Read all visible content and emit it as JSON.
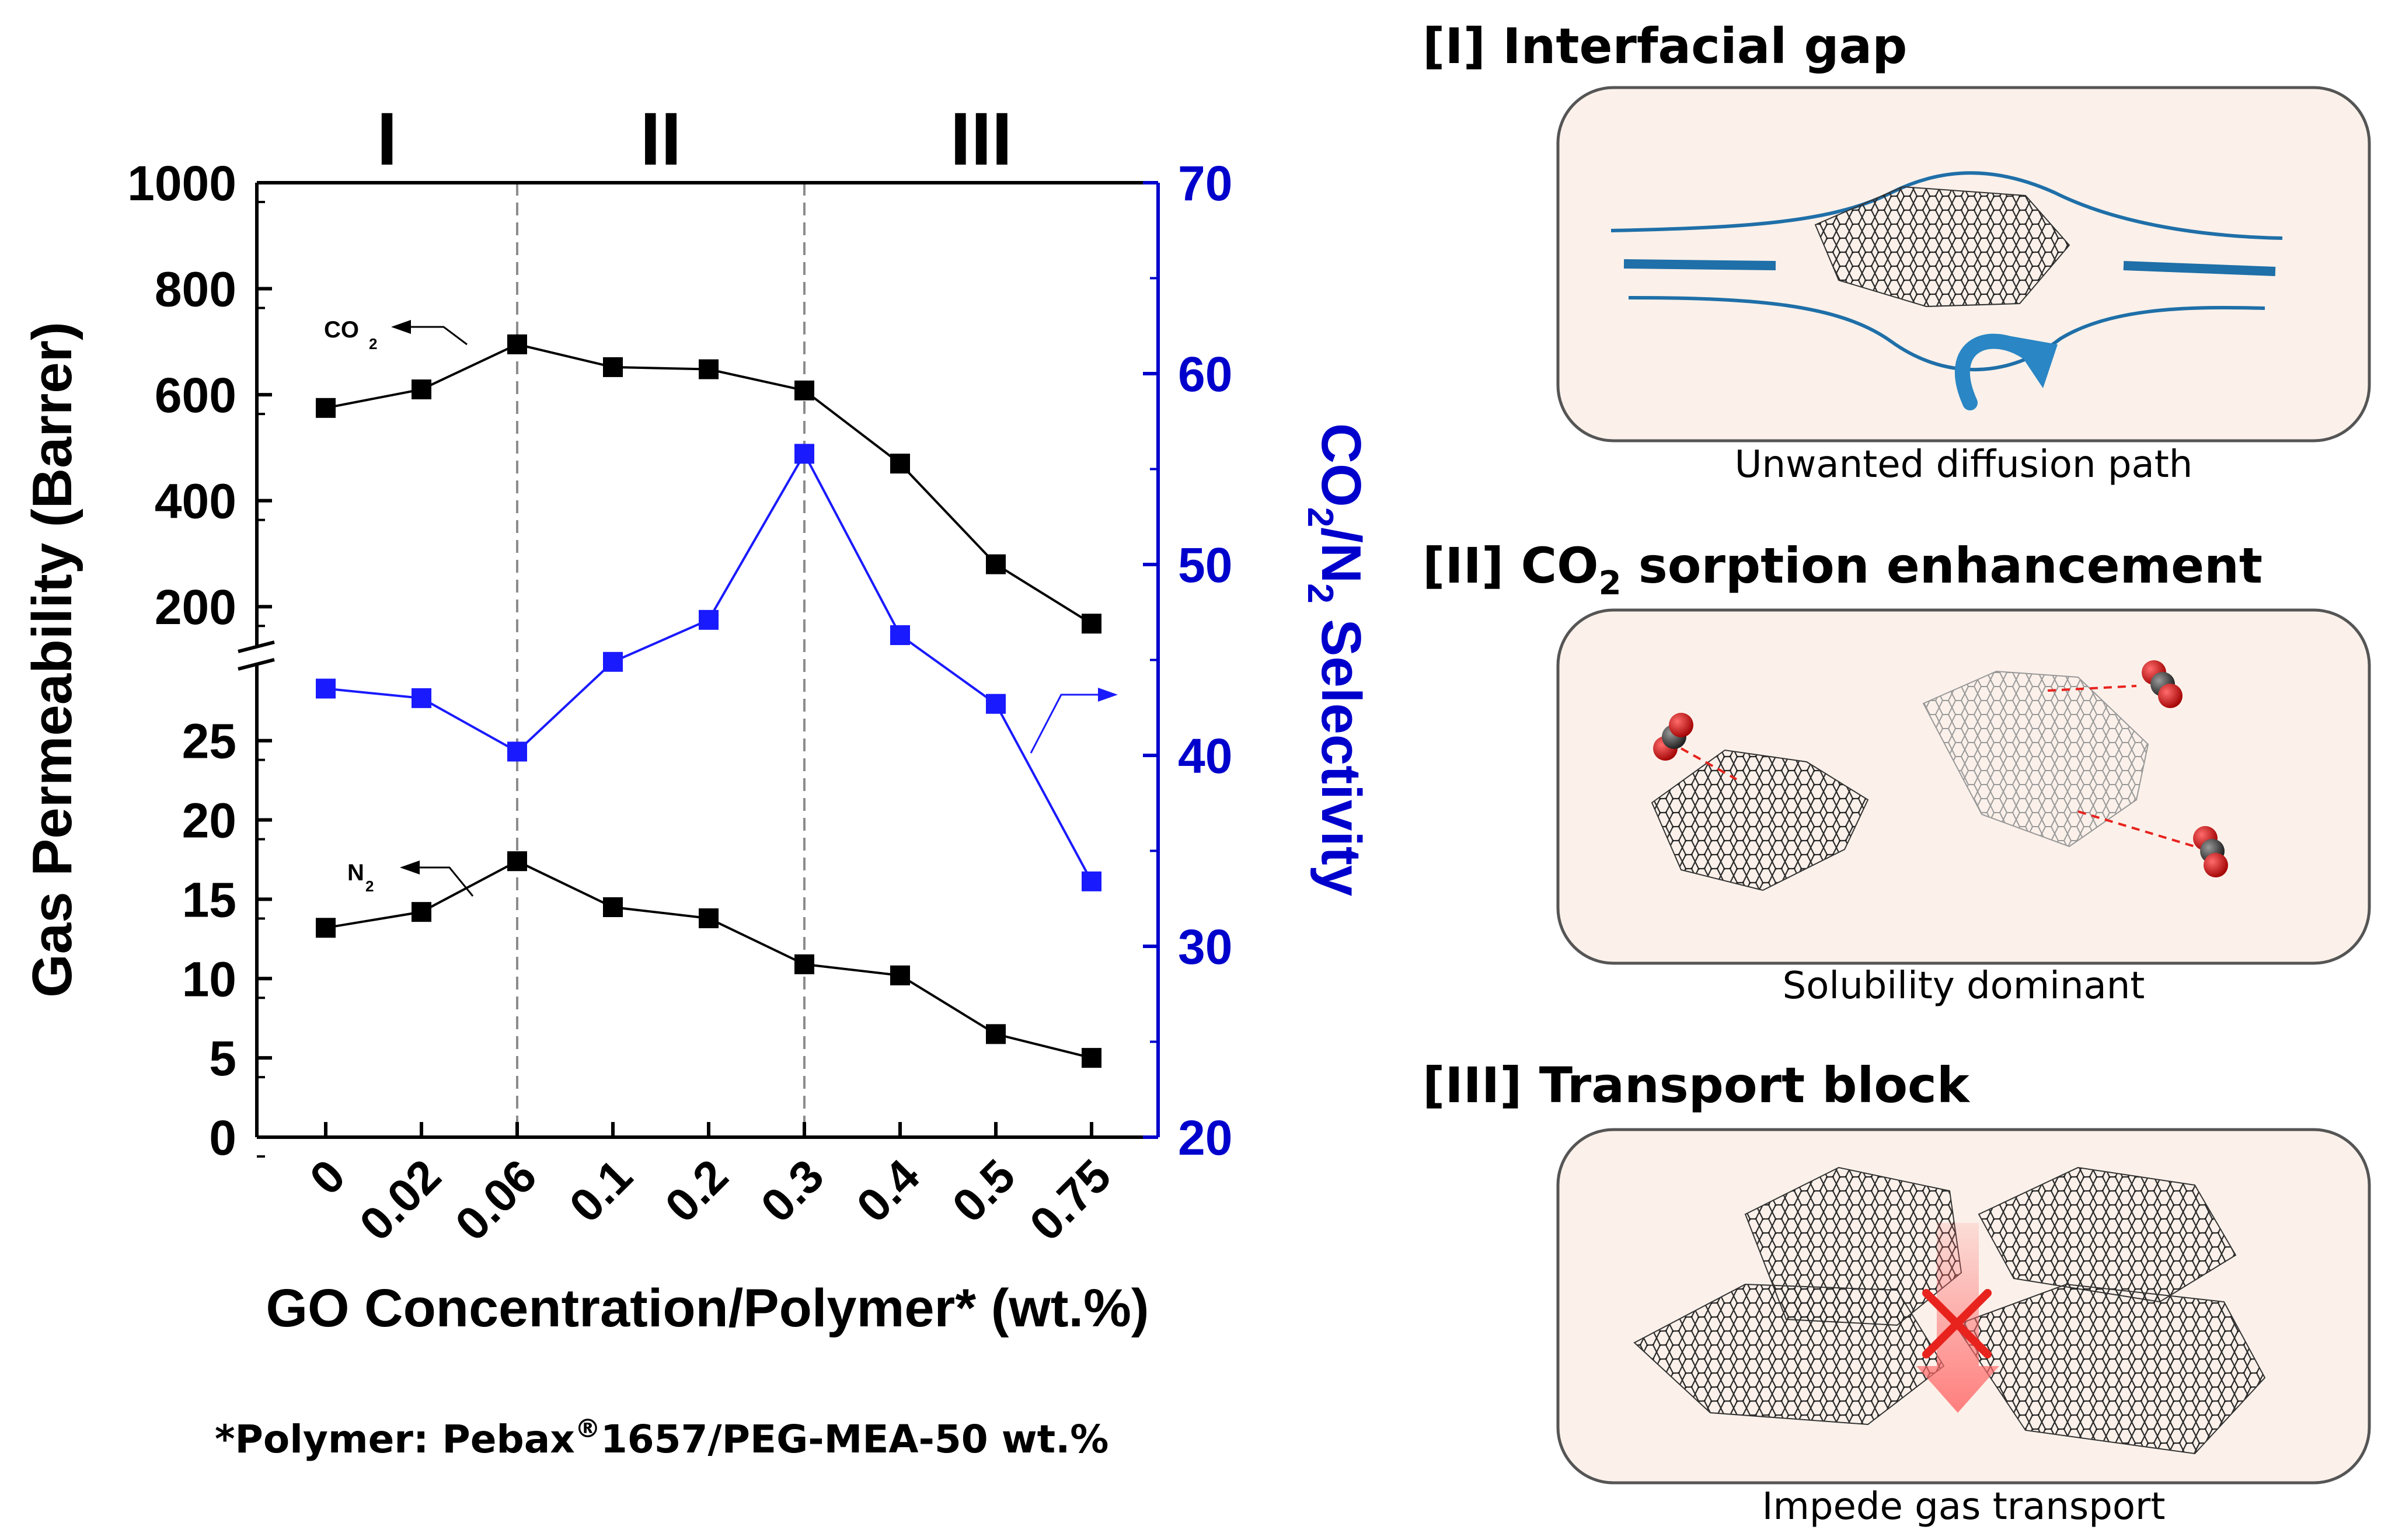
{
  "chart_data": {
    "type": "line",
    "categories": [
      "0",
      "0.02",
      "0.06",
      "0.1",
      "0.2",
      "0.3",
      "0.4",
      "0.5",
      "0.75"
    ],
    "xlabel": "GO Concentration/Polymer* (wt.%)",
    "ylabel_left": "Gas Permeability (Barrer)",
    "ylabel_right": "CO2/N2 Selectivity",
    "ylabel_right_parts": {
      "a": "CO",
      "b": "2",
      "c": "/N",
      "d": "2",
      "e": " Selectivity"
    },
    "left_axis": {
      "broken": true,
      "lower_range": [
        0,
        29
      ],
      "lower_ticks": [
        "0",
        "5",
        "10",
        "15",
        "20",
        "25"
      ],
      "lower_tick_values": [
        0,
        5,
        10,
        15,
        20,
        25
      ],
      "upper_range": [
        100,
        1000
      ],
      "upper_ticks": [
        "200",
        "400",
        "600",
        "800",
        "1000"
      ],
      "upper_tick_values": [
        200,
        400,
        600,
        800,
        1000
      ]
    },
    "right_axis": {
      "range": [
        20,
        70
      ],
      "ticks": [
        "20",
        "30",
        "40",
        "50",
        "60",
        "70"
      ],
      "tick_values": [
        20,
        30,
        40,
        50,
        60,
        70
      ],
      "color": "#0000cc"
    },
    "series": [
      {
        "name": "CO2",
        "axis": "left-upper",
        "color": "#000000",
        "values": [
          575,
          610,
          695,
          652,
          648,
          608,
          470,
          280,
          168
        ]
      },
      {
        "name": "N2",
        "axis": "left-lower",
        "color": "#000000",
        "values": [
          13.2,
          14.2,
          17.4,
          14.5,
          13.8,
          10.9,
          10.2,
          6.5,
          5.0
        ]
      },
      {
        "name": "CO2/N2 Selectivity",
        "axis": "right",
        "color": "#1a1aff",
        "values": [
          43.5,
          43.0,
          40.2,
          44.9,
          47.1,
          55.8,
          46.3,
          42.7,
          33.4
        ]
      }
    ],
    "regions": [
      {
        "label": "I",
        "from": "0",
        "to": "0.06"
      },
      {
        "label": "II",
        "from": "0.06",
        "to": "0.3"
      },
      {
        "label": "III",
        "from": "0.3",
        "to": "0.75"
      }
    ],
    "region_dividers": [
      "0.06",
      "0.3"
    ],
    "annotations": {
      "co2_label": "CO",
      "co2_sub": "2",
      "n2_label": "N",
      "n2_sub": "2"
    },
    "footnote": {
      "prefix": "*Polymer: Pebax",
      "reg": "®",
      "suffix": "1657/PEG-MEA-50 wt.%"
    }
  },
  "panels": [
    {
      "title": "[I] Interfacial gap",
      "caption": "Unwanted diffusion path"
    },
    {
      "title_prefix": "[II] CO",
      "title_sub": "2",
      "title_suffix": " sorption enhancement",
      "caption": "Solubility dominant"
    },
    {
      "title": "[III] Transport block",
      "caption": "Impede gas transport"
    }
  ],
  "colors": {
    "panel_fill": "#fbf1ea",
    "panel_stroke": "#555555",
    "flow_blue": "#1f6fa8",
    "arrow_blue": "#2a86c4",
    "block_red": "#e8231e",
    "right_axis_blue": "#0000cc",
    "selectivity_blue": "#1a1aff"
  }
}
